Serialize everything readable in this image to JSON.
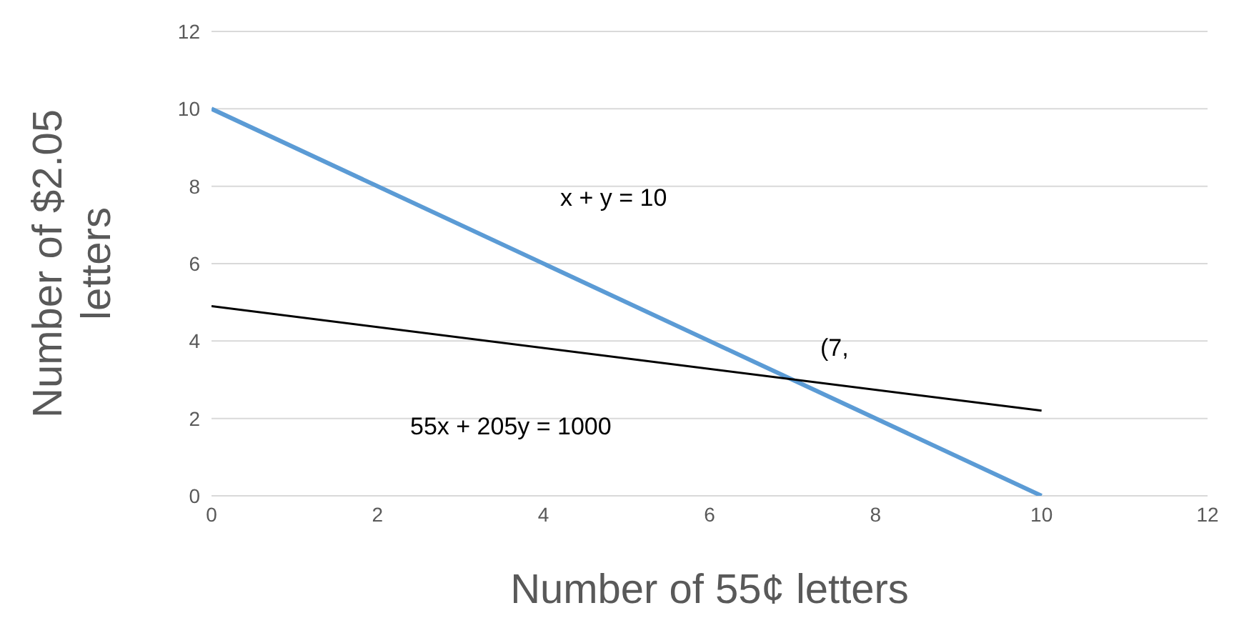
{
  "chart_data": {
    "type": "line",
    "xlabel": "Number of 55¢ letters",
    "ylabel": "Number of $2.05 letters",
    "x": [
      0,
      10
    ],
    "series": [
      {
        "values": [
          10,
          0
        ],
        "color": "#5b9bd5"
      },
      {
        "values": [
          4.9,
          2.2
        ],
        "color": "#000000"
      }
    ],
    "xlim": [
      0,
      12
    ],
    "xticks": [
      0,
      2,
      4,
      6,
      8,
      10,
      12
    ],
    "ylim": [
      0,
      12
    ],
    "yticks": [
      0,
      2,
      4,
      6,
      8,
      10,
      12
    ],
    "grid": "y",
    "marker": "none",
    "line_style": "solid",
    "annotations": [
      "x + y = 10",
      "55x + 205y = 1000",
      "(7,"
    ]
  }
}
